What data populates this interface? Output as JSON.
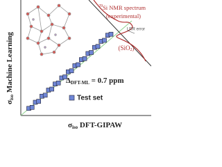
{
  "chart_data": {
    "type": "scatter",
    "x_label": {
      "symbol": "σ",
      "subscript": "iso",
      "text": " DFT-GIPAW"
    },
    "y_label": {
      "symbol": "σ",
      "subscript": "iso",
      "text": " Machine Learning"
    },
    "annotation": {
      "symbol": "Δ",
      "subscript": "DFT-ML",
      "text": " = 0.7 ppm"
    },
    "spectrum_label": {
      "superscript": "29",
      "text": "Si NMR spectrum",
      "line2": "(experimental)"
    },
    "error_label": "LRR error",
    "material_label": {
      "text": "(SiO",
      "subscript": "2",
      "end": ")"
    },
    "series": [
      {
        "name": "Test set",
        "color": "#6f86d6",
        "x": [
          6,
          9,
          12,
          15,
          18,
          21,
          24,
          27,
          30,
          33,
          36,
          39,
          42,
          45,
          48,
          51,
          54,
          57,
          60,
          63,
          66,
          69,
          72,
          75,
          78,
          81
        ],
        "values": [
          7,
          8,
          13,
          14,
          19,
          20,
          25,
          26,
          31,
          32,
          37,
          38,
          43,
          44,
          49,
          50,
          55,
          56,
          61,
          62,
          67,
          68,
          73,
          74,
          79,
          80
        ]
      }
    ],
    "xlim": [
      0,
      100
    ],
    "ylim": [
      0,
      100
    ]
  }
}
